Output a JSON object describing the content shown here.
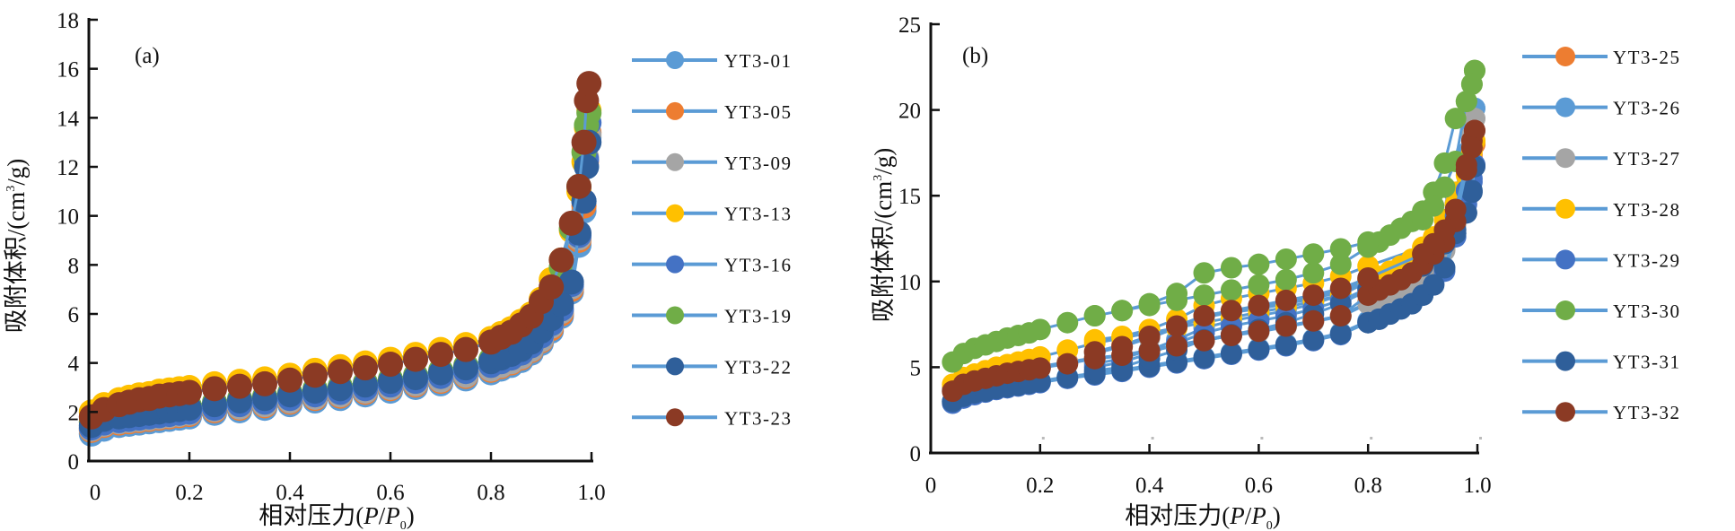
{
  "chart_data": [
    {
      "type": "line",
      "panel_label": "(a)",
      "title": "",
      "xlabel": "相对压力(P/P0)",
      "xlabel_parts": {
        "main": "相对压力(",
        "p1": "P",
        "slash": "/",
        "p2": "P",
        "sub": "0",
        "close": ")"
      },
      "ylabel": "吸附体积/(cm3/g)",
      "ylabel_parts": {
        "main": "吸附体积/(cm",
        "sup": "3",
        "close": "/g)"
      },
      "xlim": [
        0,
        1.0
      ],
      "ylim": [
        0,
        18
      ],
      "xticks": [
        0,
        0.2,
        0.4,
        0.6,
        0.8,
        1.0
      ],
      "xtick_labels": [
        "0",
        "0.2",
        "0.4",
        "0.6",
        "0.8",
        "1.0"
      ],
      "yticks": [
        0,
        2,
        4,
        6,
        8,
        10,
        12,
        14,
        16,
        18
      ],
      "ytick_labels": [
        "0",
        "2",
        "4",
        "6",
        "8",
        "10",
        "12",
        "14",
        "16",
        "18"
      ],
      "grid": false,
      "legend_position": "right",
      "x": [
        0.005,
        0.03,
        0.06,
        0.08,
        0.1,
        0.12,
        0.14,
        0.16,
        0.18,
        0.2,
        0.25,
        0.3,
        0.35,
        0.4,
        0.45,
        0.5,
        0.55,
        0.6,
        0.65,
        0.7,
        0.75,
        0.8,
        0.82,
        0.84,
        0.86,
        0.88,
        0.9,
        0.92,
        0.94,
        0.96,
        0.975,
        0.985,
        0.99,
        0.995
      ],
      "series": [
        {
          "name": "YT3-01",
          "color": "#5b9bd5",
          "values": [
            1.1,
            1.3,
            1.45,
            1.5,
            1.55,
            1.6,
            1.65,
            1.7,
            1.75,
            1.8,
            1.95,
            2.05,
            2.15,
            2.3,
            2.45,
            2.55,
            2.7,
            2.85,
            3.0,
            3.15,
            3.35,
            3.6,
            3.75,
            3.9,
            4.1,
            4.4,
            4.8,
            5.3,
            5.9,
            6.9,
            8.8,
            10.2,
            12.0,
            13.2
          ]
        },
        {
          "name": "YT3-05",
          "color": "#ed7d31",
          "values": [
            1.25,
            1.45,
            1.55,
            1.6,
            1.65,
            1.7,
            1.75,
            1.8,
            1.85,
            1.9,
            2.05,
            2.15,
            2.25,
            2.4,
            2.55,
            2.65,
            2.8,
            2.95,
            3.1,
            3.25,
            3.45,
            3.7,
            3.85,
            4.0,
            4.2,
            4.5,
            4.9,
            5.4,
            6.0,
            7.0,
            9.0,
            10.4,
            12.2,
            13.4
          ]
        },
        {
          "name": "YT3-09",
          "color": "#a5a5a5",
          "values": [
            1.3,
            1.5,
            1.6,
            1.65,
            1.7,
            1.75,
            1.8,
            1.85,
            1.9,
            1.95,
            2.1,
            2.2,
            2.3,
            2.45,
            2.6,
            2.7,
            2.85,
            3.0,
            3.15,
            3.3,
            3.5,
            3.75,
            3.9,
            4.05,
            4.25,
            4.55,
            4.95,
            5.5,
            6.1,
            7.1,
            9.1,
            10.6,
            12.4,
            13.3
          ]
        },
        {
          "name": "YT3-13",
          "color": "#ffc000",
          "values": [
            2.0,
            2.3,
            2.5,
            2.6,
            2.7,
            2.75,
            2.85,
            2.9,
            2.95,
            3.0,
            3.15,
            3.25,
            3.35,
            3.5,
            3.7,
            3.85,
            4.0,
            4.15,
            4.35,
            4.55,
            4.75,
            5.0,
            5.2,
            5.4,
            5.7,
            6.0,
            6.6,
            7.4,
            8.2,
            9.4,
            11.0,
            12.2,
            13.6,
            14.3
          ]
        },
        {
          "name": "YT3-16",
          "color": "#4472c4",
          "values": [
            1.35,
            1.55,
            1.65,
            1.7,
            1.75,
            1.8,
            1.85,
            1.9,
            1.95,
            2.0,
            2.15,
            2.3,
            2.4,
            2.55,
            2.7,
            2.8,
            2.95,
            3.1,
            3.25,
            3.45,
            3.65,
            3.9,
            4.05,
            4.2,
            4.4,
            4.7,
            5.1,
            5.6,
            6.2,
            7.2,
            9.2,
            10.6,
            12.3,
            13.8
          ]
        },
        {
          "name": "YT3-19",
          "color": "#70ad47",
          "values": [
            1.6,
            1.8,
            1.9,
            1.95,
            2.0,
            2.05,
            2.1,
            2.15,
            2.2,
            2.25,
            2.4,
            2.55,
            2.65,
            2.8,
            2.95,
            3.05,
            3.2,
            3.35,
            3.5,
            3.7,
            3.9,
            4.15,
            4.35,
            4.55,
            4.8,
            5.2,
            5.8,
            6.8,
            7.9,
            9.5,
            11.2,
            12.6,
            13.7,
            14.2
          ]
        },
        {
          "name": "YT3-22",
          "color": "#2f5f9a",
          "values": [
            1.45,
            1.7,
            1.8,
            1.85,
            1.9,
            1.95,
            2.0,
            2.05,
            2.1,
            2.15,
            2.3,
            2.45,
            2.55,
            2.7,
            2.85,
            2.95,
            3.1,
            3.25,
            3.4,
            3.6,
            3.8,
            4.05,
            4.2,
            4.35,
            4.55,
            4.85,
            5.3,
            5.8,
            6.4,
            7.3,
            9.3,
            10.6,
            12.0,
            13.0
          ]
        },
        {
          "name": "YT3-23",
          "color": "#8b3a24",
          "values": [
            1.8,
            2.1,
            2.3,
            2.4,
            2.5,
            2.55,
            2.65,
            2.7,
            2.75,
            2.8,
            2.95,
            3.05,
            3.15,
            3.3,
            3.5,
            3.65,
            3.8,
            3.95,
            4.15,
            4.35,
            4.55,
            4.85,
            5.05,
            5.25,
            5.55,
            5.9,
            6.5,
            7.1,
            8.2,
            9.7,
            11.2,
            13.0,
            14.7,
            15.4
          ]
        }
      ]
    },
    {
      "type": "line",
      "panel_label": "(b)",
      "title": "",
      "xlabel": "相对压力(P/P0)",
      "xlabel_parts": {
        "main": "相对压力(",
        "p1": "P",
        "slash": "/",
        "p2": "P",
        "sub": "0",
        "close": ")"
      },
      "ylabel": "吸附体积/(cm3/g)",
      "ylabel_parts": {
        "main": "吸附体积/(cm",
        "sup": "3",
        "close": "/g)"
      },
      "xlim": [
        0,
        1.0
      ],
      "ylim": [
        0,
        25
      ],
      "xticks": [
        0,
        0.2,
        0.4,
        0.6,
        0.8,
        1.0
      ],
      "xtick_labels": [
        "0",
        "0.2",
        "0.4",
        "0.6",
        "0.8",
        "1.0"
      ],
      "yticks": [
        0,
        5,
        10,
        15,
        20,
        25
      ],
      "ytick_labels": [
        "0",
        "5",
        "10",
        "15",
        "20",
        "25"
      ],
      "grid": false,
      "legend_position": "right",
      "x_adsorption": [
        0.04,
        0.06,
        0.08,
        0.1,
        0.12,
        0.14,
        0.16,
        0.18,
        0.2,
        0.25,
        0.3,
        0.35,
        0.4,
        0.45,
        0.5,
        0.55,
        0.6,
        0.65,
        0.7,
        0.75,
        0.8,
        0.82,
        0.84,
        0.86,
        0.88,
        0.9,
        0.92,
        0.94,
        0.96,
        0.98,
        0.99,
        0.995
      ],
      "x_desorption": [
        0.995,
        0.99,
        0.98,
        0.96,
        0.94,
        0.92,
        0.9,
        0.8,
        0.75,
        0.7,
        0.65,
        0.6,
        0.55,
        0.5,
        0.45,
        0.4,
        0.35,
        0.3
      ],
      "series": [
        {
          "name": "YT3-25",
          "color": "#ed7d31",
          "adsorption": [
            3.8,
            4.1,
            4.3,
            4.45,
            4.6,
            4.75,
            4.85,
            4.95,
            5.05,
            5.3,
            5.55,
            5.7,
            6.0,
            6.3,
            6.6,
            6.9,
            7.1,
            7.4,
            7.7,
            8.0,
            8.8,
            9.1,
            9.4,
            9.7,
            10.0,
            10.5,
            11.1,
            11.9,
            13.4,
            15.5,
            17.2,
            18.0
          ],
          "desorption": [
            18.0,
            17.4,
            16.6,
            14.5,
            13.0,
            11.8,
            11.2,
            10.1,
            9.5,
            9.1,
            8.8,
            8.5,
            8.3,
            8.0,
            7.4,
            6.8,
            6.3,
            5.9
          ]
        },
        {
          "name": "YT3-26",
          "color": "#5b9bd5",
          "adsorption": [
            3.0,
            3.3,
            3.5,
            3.65,
            3.8,
            3.9,
            4.0,
            4.1,
            4.2,
            4.45,
            4.65,
            4.85,
            5.1,
            5.35,
            5.6,
            5.85,
            6.1,
            6.35,
            6.65,
            7.0,
            7.7,
            7.9,
            8.2,
            8.5,
            8.8,
            9.3,
            9.9,
            10.8,
            12.8,
            15.5,
            18.2,
            20.1
          ],
          "desorption": [
            20.1,
            19.0,
            17.5,
            15.0,
            13.0,
            12.0,
            11.3,
            10.0,
            9.2,
            8.7,
            8.3,
            8.0,
            7.7,
            7.3,
            6.6,
            6.0,
            5.5,
            5.2
          ]
        },
        {
          "name": "YT3-27",
          "color": "#a5a5a5",
          "adsorption": [
            3.7,
            4.0,
            4.2,
            4.35,
            4.5,
            4.65,
            4.75,
            4.85,
            4.95,
            5.25,
            5.5,
            5.65,
            5.95,
            6.25,
            6.55,
            6.85,
            7.05,
            7.35,
            7.65,
            7.95,
            8.7,
            9.0,
            9.3,
            9.6,
            9.9,
            10.4,
            11.0,
            11.8,
            13.3,
            15.6,
            17.8,
            19.5
          ],
          "desorption": [
            19.5,
            18.5,
            17.0,
            14.6,
            12.9,
            11.7,
            11.1,
            10.0,
            9.4,
            9.0,
            8.7,
            8.4,
            8.2,
            7.9,
            7.3,
            6.7,
            6.2,
            5.8
          ]
        },
        {
          "name": "YT3-28",
          "color": "#ffc000",
          "adsorption": [
            4.0,
            4.4,
            4.6,
            4.8,
            5.0,
            5.15,
            5.3,
            5.45,
            5.6,
            6.0,
            6.4,
            6.7,
            7.0,
            7.3,
            7.6,
            7.9,
            8.2,
            8.5,
            8.85,
            9.2,
            10.0,
            10.3,
            10.6,
            10.9,
            11.3,
            11.8,
            12.4,
            13.1,
            14.5,
            16.2,
            17.6,
            18.2
          ],
          "desorption": [
            18.2,
            17.8,
            17.0,
            15.2,
            13.6,
            12.6,
            12.0,
            10.9,
            10.3,
            9.9,
            9.6,
            9.3,
            9.0,
            8.6,
            7.8,
            7.2,
            6.8,
            6.6
          ]
        },
        {
          "name": "YT3-29",
          "color": "#4472c4",
          "adsorption": [
            2.9,
            3.2,
            3.4,
            3.55,
            3.7,
            3.8,
            3.9,
            4.0,
            4.1,
            4.35,
            4.55,
            4.75,
            5.0,
            5.25,
            5.5,
            5.75,
            6.0,
            6.25,
            6.55,
            6.9,
            7.6,
            7.8,
            8.1,
            8.4,
            8.7,
            9.2,
            9.8,
            10.6,
            12.6,
            14.5,
            15.8,
            16.8
          ],
          "desorption": [
            16.8,
            16.0,
            15.3,
            13.8,
            12.6,
            11.7,
            11.0,
            9.6,
            8.9,
            8.4,
            8.0,
            7.7,
            7.4,
            7.0,
            6.4,
            5.8,
            5.3,
            5.0
          ]
        },
        {
          "name": "YT3-30",
          "color": "#70ad47",
          "adsorption": [
            5.3,
            5.8,
            6.1,
            6.3,
            6.5,
            6.7,
            6.85,
            7.0,
            7.2,
            7.6,
            8.0,
            8.3,
            8.6,
            8.9,
            9.2,
            9.5,
            9.8,
            10.1,
            10.5,
            11.0,
            12.0,
            12.3,
            12.7,
            13.1,
            13.5,
            14.1,
            15.2,
            16.9,
            19.5,
            20.5,
            21.5,
            22.3
          ],
          "desorption": [
            22.3,
            21.5,
            20.5,
            17.0,
            15.5,
            14.4,
            13.6,
            12.3,
            11.9,
            11.6,
            11.3,
            11.0,
            10.8,
            10.5,
            9.3,
            8.7,
            8.3,
            8.0
          ]
        },
        {
          "name": "YT3-31",
          "color": "#2f5f9a",
          "adsorption": [
            3.0,
            3.3,
            3.5,
            3.6,
            3.75,
            3.85,
            3.95,
            4.05,
            4.15,
            4.4,
            4.6,
            4.8,
            5.05,
            5.3,
            5.55,
            5.8,
            6.05,
            6.3,
            6.6,
            6.95,
            7.6,
            7.8,
            8.1,
            8.4,
            8.7,
            9.2,
            9.8,
            10.8,
            12.8,
            14.0,
            15.2,
            16.7
          ],
          "desorption": [
            16.7,
            15.3,
            14.0,
            13.0,
            12.2,
            11.5,
            10.9,
            9.5,
            8.7,
            8.1,
            7.6,
            7.2,
            6.9,
            6.6,
            6.0,
            5.5,
            5.0,
            4.8
          ]
        },
        {
          "name": "YT3-32",
          "color": "#8b3a24",
          "adsorption": [
            3.6,
            4.0,
            4.2,
            4.35,
            4.5,
            4.65,
            4.75,
            4.85,
            4.95,
            5.2,
            5.5,
            5.7,
            5.95,
            6.25,
            6.55,
            6.85,
            7.1,
            7.4,
            7.7,
            8.0,
            9.2,
            9.5,
            9.8,
            10.1,
            10.5,
            11.0,
            11.6,
            12.3,
            13.5,
            16.5,
            18.2,
            18.8
          ],
          "desorption": [
            18.8,
            17.8,
            16.8,
            14.2,
            13.0,
            12.2,
            11.6,
            10.2,
            9.6,
            9.2,
            8.9,
            8.6,
            8.3,
            8.0,
            7.4,
            6.8,
            6.2,
            5.9
          ]
        }
      ]
    }
  ]
}
